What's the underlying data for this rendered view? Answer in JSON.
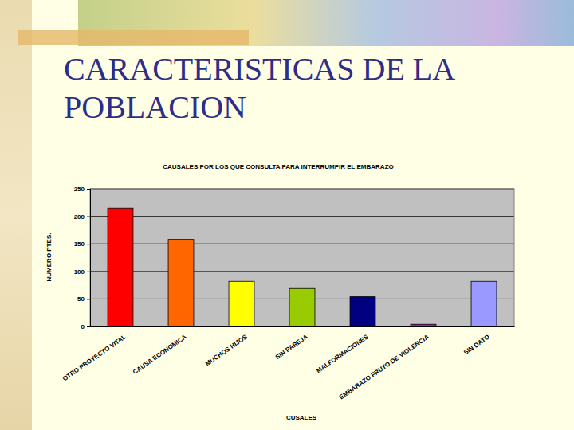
{
  "title": "CARACTERISTICAS DE LA POBLACION",
  "chart_data": {
    "type": "bar",
    "title": "CAUSALES POR LOS QUE CONSULTA PARA INTERRUMPIR EL EMBARAZO",
    "x_label": "CUSALES",
    "y_label": "NUMERO PTES.",
    "categories": [
      "OTRO PROYECTO VITAL",
      "CAUSA ECONOMICA",
      "MUCHOS HIJOS",
      "SIN PAREJA",
      "MALFORMACIONES",
      "EMBARAZO FRUTO DE VIOLENCIA",
      "SIN DATO"
    ],
    "values": [
      215,
      158,
      82,
      69,
      54,
      4,
      82
    ],
    "colors": [
      "#ff0000",
      "#ff6600",
      "#ffff00",
      "#99cc00",
      "#000080",
      "#cc00cc",
      "#9999ff"
    ],
    "ylim": [
      0,
      250
    ],
    "yticks": [
      0,
      50,
      100,
      150,
      200,
      250
    ],
    "grid": true
  }
}
